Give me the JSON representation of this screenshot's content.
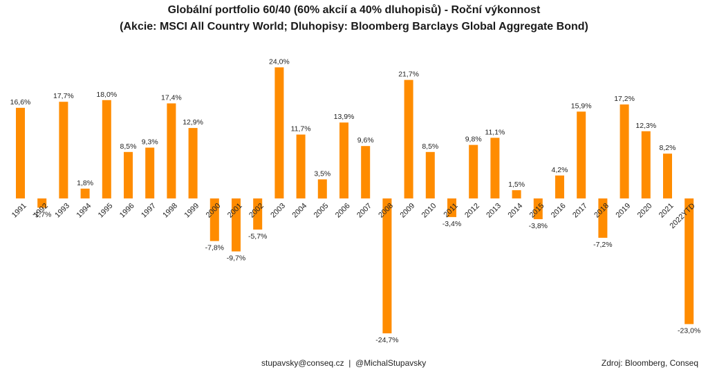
{
  "chart_data": {
    "type": "bar",
    "title": "Globální portfolio 60/40 (60% akcií a 40% dluhopisů) - Roční výkonnost",
    "subtitle": "(Akcie: MSCI All Country World; Dluhopisy: Bloomberg Barclays Global Aggregate Bond)",
    "xlabel": "",
    "ylabel": "",
    "bar_color": "#ff8c00",
    "grid": false,
    "categories": [
      "1991",
      "1992",
      "1993",
      "1994",
      "1995",
      "1996",
      "1997",
      "1998",
      "1999",
      "2000",
      "2001",
      "2002",
      "2003",
      "2004",
      "2005",
      "2006",
      "2007",
      "2008",
      "2009",
      "2010",
      "2011",
      "2012",
      "2013",
      "2014",
      "2015",
      "2016",
      "2017",
      "2018",
      "2019",
      "2020",
      "2021",
      "2022YTD"
    ],
    "values": [
      16.6,
      -1.7,
      17.7,
      1.8,
      18.0,
      8.5,
      9.3,
      17.4,
      12.9,
      -7.8,
      -9.7,
      -5.7,
      24.0,
      11.7,
      3.5,
      13.9,
      9.6,
      -24.7,
      21.7,
      8.5,
      -3.4,
      9.8,
      11.1,
      1.5,
      -3.8,
      4.2,
      15.9,
      -7.2,
      17.2,
      12.3,
      8.2,
      -23.0
    ],
    "value_labels": [
      "16,6%",
      "-1,7%",
      "17,7%",
      "1,8%",
      "18,0%",
      "8,5%",
      "9,3%",
      "17,4%",
      "12,9%",
      "-7,8%",
      "-9,7%",
      "-5,7%",
      "24,0%",
      "11,7%",
      "3,5%",
      "13,9%",
      "9,6%",
      "-24,7%",
      "21,7%",
      "8,5%",
      "-3,4%",
      "9,8%",
      "11,1%",
      "1,5%",
      "-3,8%",
      "4,2%",
      "15,9%",
      "-7,2%",
      "17,2%",
      "12,3%",
      "8,2%",
      "-23,0%"
    ]
  },
  "footer": {
    "contact": "stupavsky@conseq.cz  |  @MichalStupavsky",
    "source": "Zdroj: Bloomberg, Conseq"
  }
}
